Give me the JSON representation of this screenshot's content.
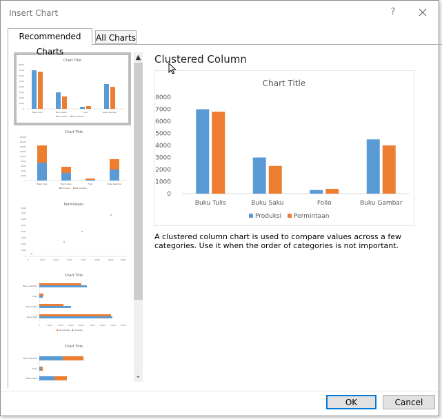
{
  "dialog": {
    "title": "Insert Chart",
    "help_label": "?"
  },
  "tabs": [
    {
      "label": "Recommended Charts",
      "active": true
    },
    {
      "label": "All Charts",
      "active": false
    }
  ],
  "preview": {
    "chart_type_name": "Clustered Column",
    "description": "A clustered column chart is used to compare values across a few categories. Use it when the order of categories is not important."
  },
  "buttons": {
    "ok": "OK",
    "cancel": "Cancel"
  },
  "colors": {
    "series1": "#5b9bd5",
    "series2": "#ed7d31"
  },
  "icons": {
    "scroll_up": "▲",
    "scroll_down": "⌄"
  },
  "thumbnails": [
    {
      "title": "Chart Title",
      "kind": "clustered-column"
    },
    {
      "title": "Chart Title",
      "kind": "stacked-column"
    },
    {
      "title": "Permintaan",
      "kind": "scatter"
    },
    {
      "title": "Chart Title",
      "kind": "clustered-bar"
    },
    {
      "title": "Chart Title",
      "kind": "stacked-bar"
    }
  ],
  "chart_data": {
    "type": "bar",
    "title": "Chart Title",
    "categories": [
      "Buku Tulis",
      "Buku Saku",
      "Folio",
      "Buku Gambar"
    ],
    "series": [
      {
        "name": "Produksi",
        "values": [
          7000,
          3000,
          300,
          4500
        ]
      },
      {
        "name": "Permintaan",
        "values": [
          6800,
          2300,
          400,
          4000
        ]
      }
    ],
    "y_ticks": [
      "0",
      "1000",
      "2000",
      "3000",
      "4000",
      "5000",
      "6000",
      "7000",
      "8000"
    ],
    "ylim": [
      0,
      8000
    ],
    "legend": "bottom",
    "grid": false
  }
}
